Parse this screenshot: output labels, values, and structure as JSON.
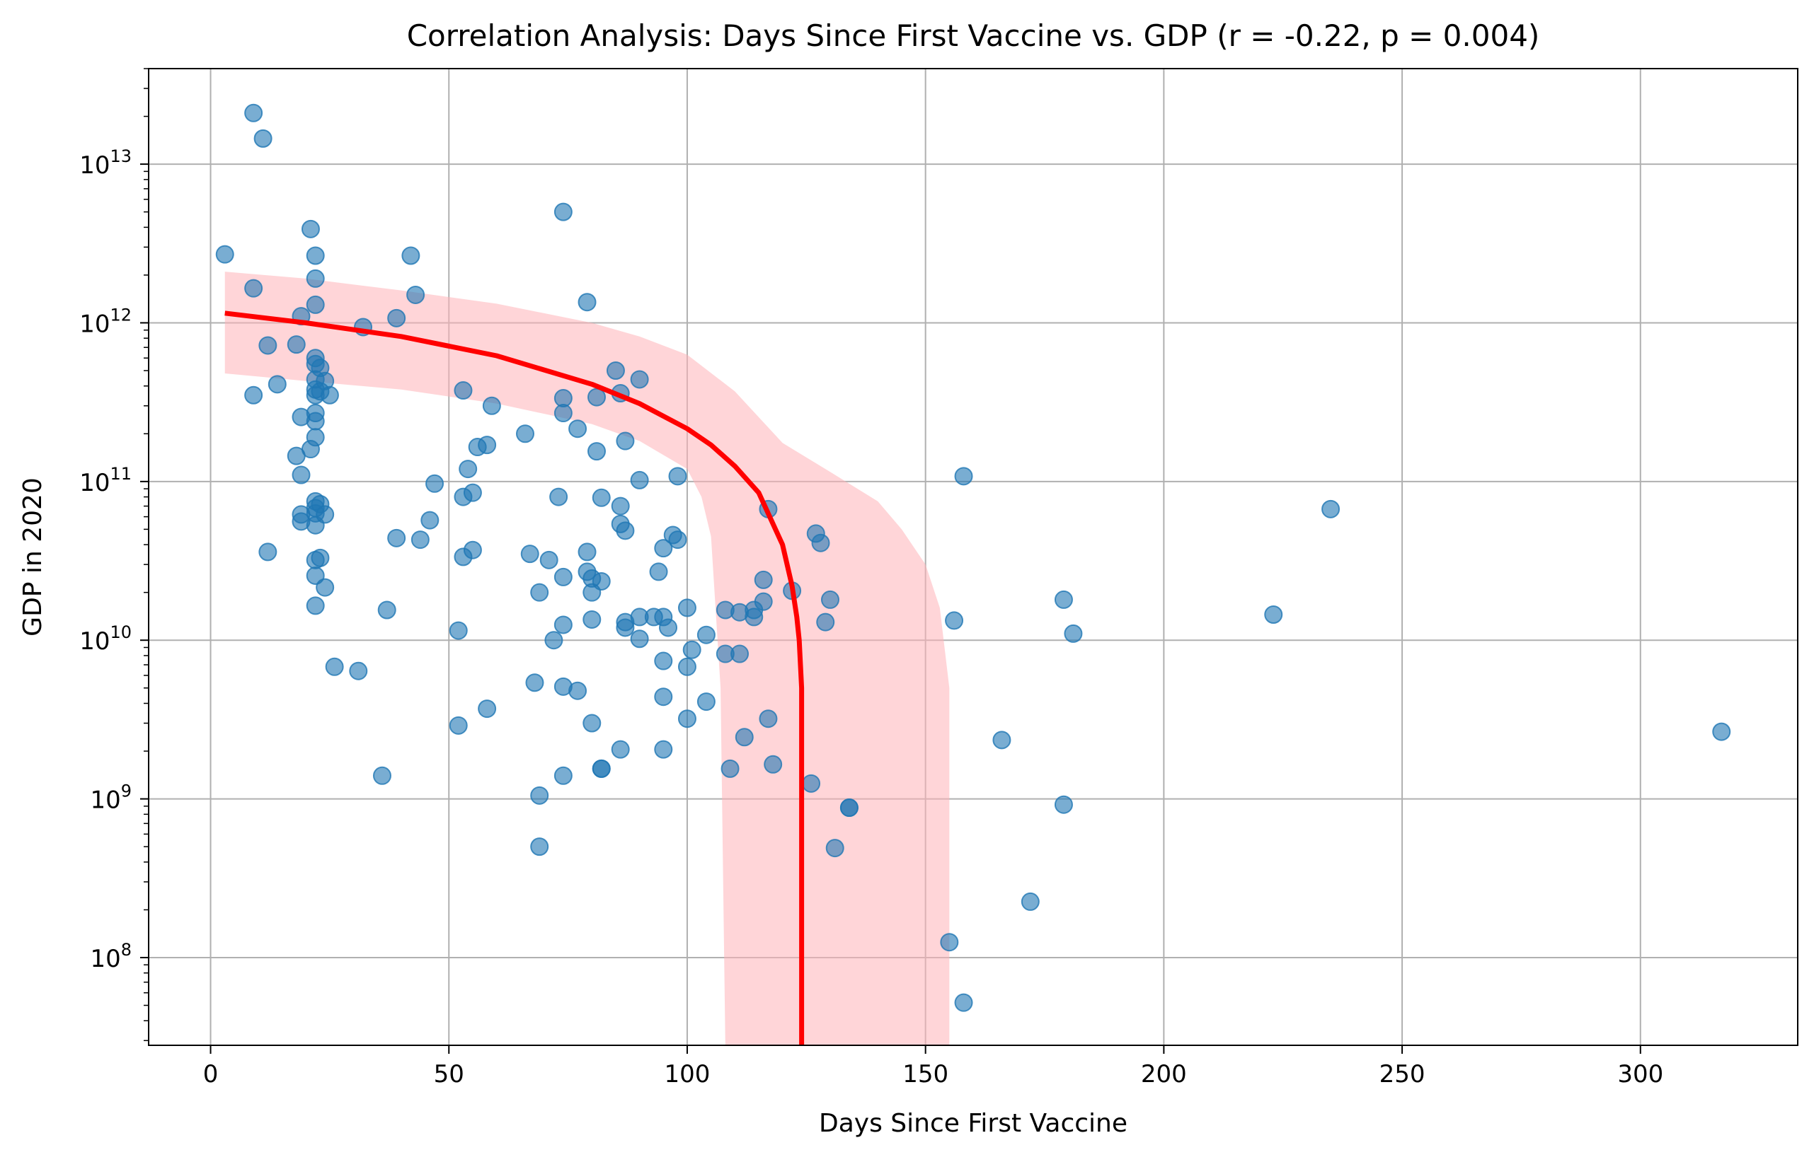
{
  "chart_data": {
    "type": "scatter",
    "title": "Correlation Analysis: Days Since First Vaccine vs. GDP (r = -0.22, p = 0.004)",
    "xlabel": "Days Since First Vaccine",
    "ylabel": "GDP in 2020",
    "xlim": [
      -13,
      333
    ],
    "ylim": [
      28000000.0,
      40000000000000.0
    ],
    "yscale": "log",
    "grid": true,
    "x_ticks": [
      0,
      50,
      100,
      150,
      200,
      250,
      300
    ],
    "x_tick_labels": [
      "0",
      "50",
      "100",
      "150",
      "200",
      "250",
      "300"
    ],
    "y_ticks": [
      100000000.0,
      1000000000.0,
      10000000000.0,
      100000000000.0,
      1000000000000.0,
      10000000000000.0
    ],
    "y_tick_labels": [
      {
        "base": "10",
        "exp": "8"
      },
      {
        "base": "10",
        "exp": "9"
      },
      {
        "base": "10",
        "exp": "10"
      },
      {
        "base": "10",
        "exp": "11"
      },
      {
        "base": "10",
        "exp": "12"
      },
      {
        "base": "10",
        "exp": "13"
      }
    ],
    "colors": {
      "points": "#1f77b4",
      "trend": "#ff0000",
      "band": "#ffb3b8",
      "grid": "#b0b0b0"
    },
    "points": [
      [
        3,
        2700000000000.0
      ],
      [
        9,
        21000000000000.0
      ],
      [
        11,
        14500000000000.0
      ],
      [
        9,
        1650000000000.0
      ],
      [
        12,
        720000000000.0
      ],
      [
        9,
        350000000000.0
      ],
      [
        14,
        410000000000.0
      ],
      [
        12,
        36000000000.0
      ],
      [
        18,
        730000000000.0
      ],
      [
        19,
        1100000000000.0
      ],
      [
        18,
        145000000000.0
      ],
      [
        19,
        110000000000.0
      ],
      [
        19,
        62000000000.0
      ],
      [
        19,
        56000000000.0
      ],
      [
        19,
        255000000000.0
      ],
      [
        21,
        3900000000000.0
      ],
      [
        21,
        160000000000.0
      ],
      [
        22,
        2650000000000.0
      ],
      [
        22,
        1900000000000.0
      ],
      [
        22,
        1300000000000.0
      ],
      [
        22,
        600000000000.0
      ],
      [
        22,
        550000000000.0
      ],
      [
        22,
        440000000000.0
      ],
      [
        22,
        380000000000.0
      ],
      [
        22,
        350000000000.0
      ],
      [
        22,
        270000000000.0
      ],
      [
        22,
        240000000000.0
      ],
      [
        22,
        190000000000.0
      ],
      [
        22,
        75000000000.0
      ],
      [
        22,
        68000000000.0
      ],
      [
        22,
        63000000000.0
      ],
      [
        22,
        53000000000.0
      ],
      [
        22,
        32000000000.0
      ],
      [
        22,
        25500000000.0
      ],
      [
        22,
        16500000000.0
      ],
      [
        23,
        520000000000.0
      ],
      [
        23,
        370000000000.0
      ],
      [
        23,
        72000000000.0
      ],
      [
        23,
        33000000000.0
      ],
      [
        24,
        430000000000.0
      ],
      [
        24,
        62000000000.0
      ],
      [
        24,
        21500000000.0
      ],
      [
        25,
        350000000000.0
      ],
      [
        26,
        6800000000.0
      ],
      [
        31,
        6400000000.0
      ],
      [
        32,
        940000000000.0
      ],
      [
        36,
        1400000000.0
      ],
      [
        37,
        15500000000.0
      ],
      [
        39,
        1070000000000.0
      ],
      [
        39,
        44000000000.0
      ],
      [
        42,
        2650000000000.0
      ],
      [
        43,
        1500000000000.0
      ],
      [
        44,
        43000000000.0
      ],
      [
        46,
        57000000000.0
      ],
      [
        47,
        97000000000.0
      ],
      [
        52,
        11500000000.0
      ],
      [
        52,
        2900000000.0
      ],
      [
        53,
        375000000000.0
      ],
      [
        53,
        80000000000.0
      ],
      [
        53,
        33500000000.0
      ],
      [
        54,
        120000000000.0
      ],
      [
        55,
        85000000000.0
      ],
      [
        55,
        37000000000.0
      ],
      [
        56,
        165000000000.0
      ],
      [
        58,
        170000000000.0
      ],
      [
        58,
        3700000000.0
      ],
      [
        59,
        300000000000.0
      ],
      [
        66,
        200000000000.0
      ],
      [
        67,
        35000000000.0
      ],
      [
        68,
        5400000000.0
      ],
      [
        69,
        20000000000.0
      ],
      [
        69,
        1050000000.0
      ],
      [
        69,
        500000000.0
      ],
      [
        71,
        32000000000.0
      ],
      [
        72,
        10000000000.0
      ],
      [
        73,
        80000000000.0
      ],
      [
        74,
        5000000000000.0
      ],
      [
        74,
        335000000000.0
      ],
      [
        74,
        270000000000.0
      ],
      [
        74,
        25000000000.0
      ],
      [
        74,
        12500000000.0
      ],
      [
        74,
        5100000000.0
      ],
      [
        74,
        1400000000.0
      ],
      [
        77,
        215000000000.0
      ],
      [
        77,
        4800000000.0
      ],
      [
        79,
        1350000000000.0
      ],
      [
        79,
        36000000000.0
      ],
      [
        79,
        27000000000.0
      ],
      [
        80,
        24500000000.0
      ],
      [
        80,
        20000000000.0
      ],
      [
        80,
        13500000000.0
      ],
      [
        80,
        3000000000.0
      ],
      [
        81,
        340000000000.0
      ],
      [
        81,
        155000000000.0
      ],
      [
        82,
        79000000000.0
      ],
      [
        82,
        23500000000.0
      ],
      [
        82,
        1550000000.0
      ],
      [
        82,
        1550000000.0
      ],
      [
        85,
        500000000000.0
      ],
      [
        86,
        360000000000.0
      ],
      [
        86,
        70000000000.0
      ],
      [
        86,
        54000000000.0
      ],
      [
        86,
        2050000000.0
      ],
      [
        87,
        180000000000.0
      ],
      [
        87,
        49000000000.0
      ],
      [
        87,
        13000000000.0
      ],
      [
        87,
        12000000000.0
      ],
      [
        90,
        440000000000.0
      ],
      [
        90,
        102000000000.0
      ],
      [
        90,
        14000000000.0
      ],
      [
        90,
        10200000000.0
      ],
      [
        93,
        14000000000.0
      ],
      [
        94,
        27000000000.0
      ],
      [
        95,
        38000000000.0
      ],
      [
        95,
        14000000000.0
      ],
      [
        95,
        7400000000.0
      ],
      [
        95,
        4400000000.0
      ],
      [
        95,
        2050000000.0
      ],
      [
        96,
        12000000000.0
      ],
      [
        97,
        46000000000.0
      ],
      [
        98,
        108000000000.0
      ],
      [
        98,
        43000000000.0
      ],
      [
        100,
        16000000000.0
      ],
      [
        100,
        6800000000.0
      ],
      [
        100,
        3200000000.0
      ],
      [
        101,
        8700000000.0
      ],
      [
        104,
        10800000000.0
      ],
      [
        104,
        4100000000.0
      ],
      [
        108,
        15500000000.0
      ],
      [
        108,
        8200000000.0
      ],
      [
        109,
        1550000000.0
      ],
      [
        111,
        15000000000.0
      ],
      [
        111,
        8200000000.0
      ],
      [
        112,
        2450000000.0
      ],
      [
        114,
        15500000000.0
      ],
      [
        114,
        14000000000.0
      ],
      [
        116,
        24000000000.0
      ],
      [
        116,
        17500000000.0
      ],
      [
        117,
        67000000000.0
      ],
      [
        117,
        3200000000.0
      ],
      [
        118,
        1650000000.0
      ],
      [
        122,
        20500000000.0
      ],
      [
        126,
        1250000000.0
      ],
      [
        127,
        47000000000.0
      ],
      [
        128,
        41000000000.0
      ],
      [
        129,
        13000000000.0
      ],
      [
        130,
        18000000000.0
      ],
      [
        131,
        490000000.0
      ],
      [
        134,
        880000000.0
      ],
      [
        134,
        880000000.0
      ],
      [
        155,
        125000000.0
      ],
      [
        156,
        13300000000.0
      ],
      [
        158,
        108000000000.0
      ],
      [
        158,
        52000000.0
      ],
      [
        166,
        2350000000.0
      ],
      [
        172,
        225000000.0
      ],
      [
        179,
        18000000000.0
      ],
      [
        179,
        920000000.0
      ],
      [
        181,
        11000000000.0
      ],
      [
        223,
        14500000000.0
      ],
      [
        235,
        67000000000.0
      ],
      [
        317,
        2650000000.0
      ]
    ],
    "trend_line": {
      "x": [
        3,
        20,
        40,
        60,
        80,
        90,
        100,
        105,
        110,
        115,
        120,
        122,
        123,
        123.5,
        124,
        124
      ],
      "y": [
        1150000000000.0,
        1000000000000.0,
        820000000000.0,
        620000000000.0,
        410000000000.0,
        310000000000.0,
        215000000000.0,
        170000000000.0,
        125000000000.0,
        85000000000.0,
        40000000000.0,
        22000000000.0,
        14000000000.0,
        10000000000.0,
        5000000000.0,
        28000000.0
      ]
    },
    "confidence_band": {
      "x": [
        3,
        20,
        40,
        60,
        80,
        90,
        100,
        110,
        120,
        130,
        140,
        145,
        150,
        153,
        155
      ],
      "upper": [
        2100000000000.0,
        1900000000000.0,
        1600000000000.0,
        1320000000000.0,
        1000000000000.0,
        820000000000.0,
        630000000000.0,
        370000000000.0,
        175000000000.0,
        115000000000.0,
        75000000000.0,
        50000000000.0,
        30000000000.0,
        16000000000.0,
        5000000000.0
      ],
      "lower": [
        480000000000.0,
        430000000000.0,
        380000000000.0,
        310000000000.0,
        230000000000.0,
        180000000000.0,
        120000000000.0,
        28000000.0,
        28000000.0,
        28000000.0,
        28000000.0,
        28000000.0,
        28000000.0,
        28000000.0,
        28000000.0
      ],
      "lower_steep": {
        "x": [
          100,
          103,
          105,
          107,
          108
        ],
        "y": [
          120000000000.0,
          80000000000.0,
          45000000000.0,
          5000000000.0,
          28000000.0
        ]
      }
    }
  }
}
